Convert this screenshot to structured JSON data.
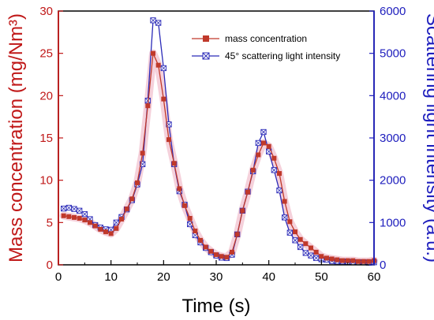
{
  "chart_data": {
    "type": "line",
    "xlabel": "Time (s)",
    "ylabel_left": "Mass concentration (mg/Nm³)",
    "ylabel_right": "Scattering light intensity (a.u.)",
    "xlim": [
      0,
      60
    ],
    "ylim_left": [
      0,
      30
    ],
    "ylim_right": [
      0,
      6000
    ],
    "x_ticks": [
      "0",
      "10",
      "20",
      "30",
      "40",
      "50",
      "60"
    ],
    "y_left_ticks": [
      "0",
      "5",
      "10",
      "15",
      "20",
      "25",
      "30"
    ],
    "y_right_ticks": [
      "0",
      "1000",
      "2000",
      "3000",
      "4000",
      "5000",
      "6000"
    ],
    "grid": false,
    "legend_position": "top-right",
    "colors": {
      "mass": "#c0392b",
      "scatter": "#2b2bb8",
      "left_axis": "#c01818",
      "right_axis": "#1e1ebd"
    },
    "series": [
      {
        "name": "mass concentration",
        "axis": "left",
        "marker": "square",
        "x": [
          1,
          2,
          3,
          4,
          5,
          6,
          7,
          8,
          9,
          10,
          11,
          12,
          13,
          14,
          15,
          16,
          17,
          18,
          19,
          20,
          21,
          22,
          23,
          24,
          25,
          26,
          27,
          28,
          29,
          30,
          31,
          32,
          33,
          34,
          35,
          36,
          37,
          38,
          39,
          40,
          41,
          42,
          43,
          44,
          45,
          46,
          47,
          48,
          49,
          50,
          51,
          52,
          53,
          54,
          55,
          56,
          57,
          58,
          59,
          60
        ],
        "values": [
          5.8,
          5.7,
          5.6,
          5.5,
          5.3,
          5.0,
          4.6,
          4.2,
          3.9,
          3.7,
          4.3,
          5.4,
          6.6,
          7.8,
          9.7,
          13.2,
          18.8,
          25.0,
          23.6,
          19.6,
          14.8,
          12.0,
          9.0,
          7.0,
          5.5,
          4.0,
          2.9,
          2.1,
          1.6,
          1.2,
          1.0,
          0.9,
          1.5,
          3.6,
          6.4,
          8.6,
          11.2,
          13.0,
          14.4,
          14.0,
          12.6,
          10.8,
          7.5,
          5.1,
          3.9,
          3.0,
          2.5,
          2.0,
          1.5,
          1.0,
          0.8,
          0.7,
          0.6,
          0.5,
          0.5,
          0.5,
          0.4,
          0.4,
          0.4,
          0.5
        ]
      },
      {
        "name": "45° scattering light intensity",
        "axis": "right",
        "marker": "crossed-square",
        "x": [
          1,
          2,
          3,
          4,
          5,
          6,
          7,
          8,
          9,
          10,
          11,
          12,
          13,
          14,
          15,
          16,
          17,
          18,
          19,
          20,
          21,
          22,
          23,
          24,
          25,
          26,
          27,
          28,
          29,
          30,
          31,
          32,
          33,
          34,
          35,
          36,
          37,
          38,
          39,
          40,
          41,
          42,
          43,
          44,
          45,
          46,
          47,
          48,
          49,
          50,
          51,
          52,
          53,
          54,
          55,
          56,
          57,
          58,
          59,
          60
        ],
        "values": [
          1330,
          1350,
          1320,
          1280,
          1200,
          1080,
          940,
          880,
          840,
          830,
          1000,
          1130,
          1310,
          1530,
          1900,
          2380,
          3880,
          5780,
          5720,
          4650,
          3320,
          2380,
          1740,
          1420,
          960,
          700,
          530,
          400,
          300,
          220,
          170,
          160,
          240,
          720,
          1280,
          1730,
          2210,
          2880,
          3140,
          2680,
          2240,
          1760,
          1120,
          760,
          580,
          420,
          280,
          220,
          160,
          130,
          120,
          90,
          80,
          80,
          70,
          60,
          60,
          60,
          50,
          60
        ]
      }
    ]
  }
}
